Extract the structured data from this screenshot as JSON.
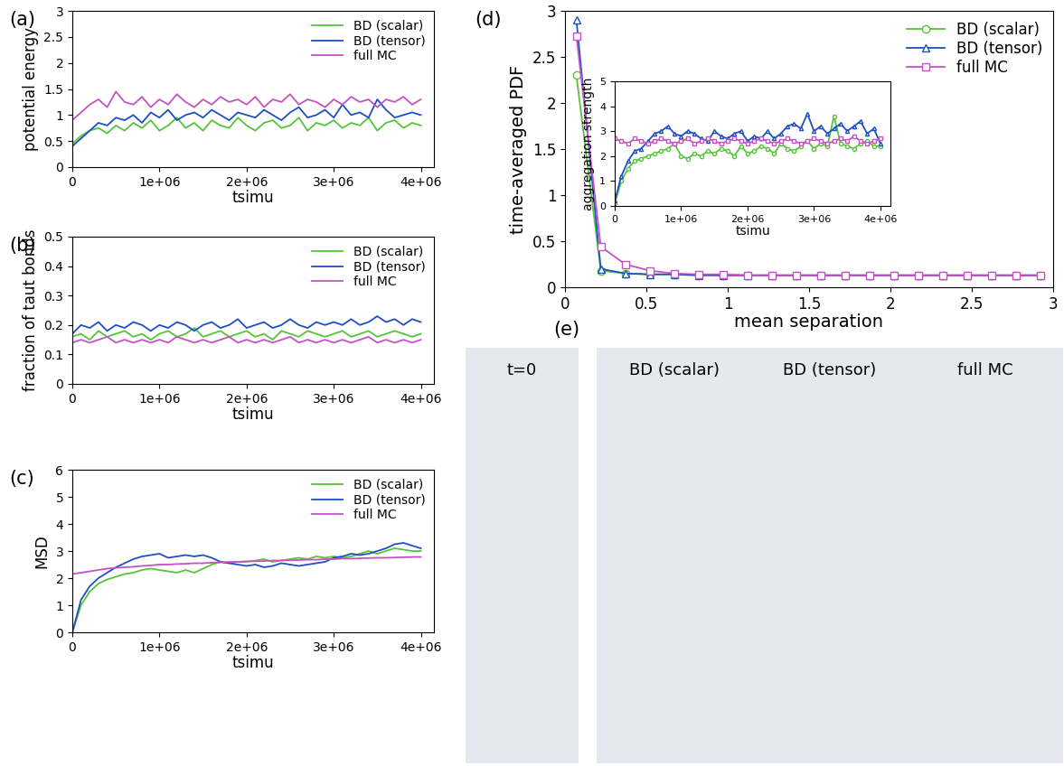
{
  "chart_data": [
    {
      "type": "line",
      "panel": "(a)",
      "xlabel": "tsimu",
      "ylabel": "potential energy",
      "xlim": [
        0,
        4150000
      ],
      "ylim": [
        0,
        3
      ],
      "xticks": [
        0,
        {
          "value": 1000000,
          "label": "1e+06"
        },
        {
          "value": 2000000,
          "label": "2e+06"
        },
        {
          "value": 3000000,
          "label": "3e+06"
        },
        {
          "value": 4000000,
          "label": "4e+06"
        }
      ],
      "yticks": [
        0,
        0.5,
        1,
        1.5,
        2,
        2.5,
        3
      ],
      "legend": "upper right",
      "x": [
        0,
        100000,
        200000,
        300000,
        400000,
        500000,
        600000,
        700000,
        800000,
        900000,
        1000000,
        1100000,
        1200000,
        1300000,
        1400000,
        1500000,
        1600000,
        1700000,
        1800000,
        1900000,
        2000000,
        2100000,
        2200000,
        2300000,
        2400000,
        2500000,
        2600000,
        2700000,
        2800000,
        2900000,
        3000000,
        3100000,
        3200000,
        3300000,
        3400000,
        3500000,
        3600000,
        3700000,
        3800000,
        3900000,
        4000000
      ],
      "series": [
        {
          "name": "BD (scalar)",
          "color": "#55c43a",
          "values": [
            0.45,
            0.6,
            0.7,
            0.75,
            0.65,
            0.8,
            0.7,
            0.85,
            0.75,
            0.9,
            0.7,
            0.8,
            0.95,
            0.75,
            0.85,
            0.7,
            0.9,
            0.8,
            0.75,
            0.95,
            0.8,
            0.7,
            0.85,
            0.9,
            0.75,
            0.8,
            0.95,
            0.7,
            0.85,
            0.8,
            0.9,
            0.75,
            0.85,
            0.8,
            0.95,
            0.7,
            0.85,
            0.9,
            0.75,
            0.85,
            0.8
          ]
        },
        {
          "name": "BD (tensor)",
          "color": "#1f4fc4",
          "values": [
            0.4,
            0.55,
            0.7,
            0.85,
            0.8,
            0.95,
            0.9,
            1.0,
            0.85,
            1.05,
            0.95,
            1.1,
            0.9,
            1.0,
            1.05,
            0.95,
            1.1,
            1.0,
            0.9,
            1.05,
            1.0,
            0.95,
            1.1,
            1.0,
            0.9,
            1.05,
            1.15,
            0.95,
            1.0,
            1.1,
            0.95,
            1.2,
            1.0,
            1.05,
            0.95,
            1.3,
            1.1,
            0.95,
            1.0,
            1.05,
            1.0
          ]
        },
        {
          "name": "full MC",
          "color": "#c452c4",
          "values": [
            0.9,
            1.05,
            1.2,
            1.3,
            1.15,
            1.45,
            1.25,
            1.2,
            1.35,
            1.15,
            1.3,
            1.2,
            1.4,
            1.25,
            1.15,
            1.3,
            1.2,
            1.35,
            1.25,
            1.3,
            1.2,
            1.35,
            1.15,
            1.3,
            1.25,
            1.4,
            1.2,
            1.3,
            1.25,
            1.15,
            1.3,
            1.2,
            1.35,
            1.25,
            1.3,
            1.15,
            1.3,
            1.25,
            1.35,
            1.2,
            1.3
          ]
        }
      ]
    },
    {
      "type": "line",
      "panel": "(b)",
      "xlabel": "tsimu",
      "ylabel": "fraction of taut bonds",
      "xlim": [
        0,
        4150000
      ],
      "ylim": [
        0,
        0.5
      ],
      "xticks": [
        0,
        {
          "value": 1000000,
          "label": "1e+06"
        },
        {
          "value": 2000000,
          "label": "2e+06"
        },
        {
          "value": 3000000,
          "label": "3e+06"
        },
        {
          "value": 4000000,
          "label": "4e+06"
        }
      ],
      "yticks": [
        0,
        0.1,
        0.2,
        0.3,
        0.4,
        0.5
      ],
      "legend": "upper right",
      "x": [
        0,
        100000,
        200000,
        300000,
        400000,
        500000,
        600000,
        700000,
        800000,
        900000,
        1000000,
        1100000,
        1200000,
        1300000,
        1400000,
        1500000,
        1600000,
        1700000,
        1800000,
        1900000,
        2000000,
        2100000,
        2200000,
        2300000,
        2400000,
        2500000,
        2600000,
        2700000,
        2800000,
        2900000,
        3000000,
        3100000,
        3200000,
        3300000,
        3400000,
        3500000,
        3600000,
        3700000,
        3800000,
        3900000,
        4000000
      ],
      "series": [
        {
          "name": "BD (scalar)",
          "color": "#55c43a",
          "values": [
            0.16,
            0.17,
            0.15,
            0.18,
            0.16,
            0.17,
            0.18,
            0.16,
            0.17,
            0.15,
            0.17,
            0.18,
            0.16,
            0.17,
            0.19,
            0.16,
            0.17,
            0.18,
            0.16,
            0.17,
            0.18,
            0.16,
            0.17,
            0.15,
            0.18,
            0.17,
            0.16,
            0.18,
            0.17,
            0.16,
            0.17,
            0.18,
            0.16,
            0.17,
            0.18,
            0.16,
            0.17,
            0.18,
            0.17,
            0.16,
            0.17
          ]
        },
        {
          "name": "BD (tensor)",
          "color": "#1f4fc4",
          "values": [
            0.17,
            0.2,
            0.19,
            0.21,
            0.18,
            0.2,
            0.19,
            0.21,
            0.2,
            0.18,
            0.2,
            0.19,
            0.21,
            0.2,
            0.18,
            0.2,
            0.21,
            0.19,
            0.2,
            0.22,
            0.19,
            0.2,
            0.21,
            0.19,
            0.2,
            0.22,
            0.2,
            0.19,
            0.21,
            0.2,
            0.21,
            0.2,
            0.22,
            0.2,
            0.21,
            0.23,
            0.21,
            0.22,
            0.2,
            0.22,
            0.21
          ]
        },
        {
          "name": "full MC",
          "color": "#c452c4",
          "values": [
            0.14,
            0.15,
            0.14,
            0.15,
            0.16,
            0.14,
            0.15,
            0.14,
            0.15,
            0.14,
            0.15,
            0.14,
            0.16,
            0.15,
            0.14,
            0.15,
            0.14,
            0.15,
            0.16,
            0.14,
            0.15,
            0.14,
            0.15,
            0.14,
            0.15,
            0.16,
            0.14,
            0.15,
            0.14,
            0.15,
            0.14,
            0.15,
            0.14,
            0.15,
            0.16,
            0.14,
            0.15,
            0.14,
            0.15,
            0.14,
            0.15
          ]
        }
      ]
    },
    {
      "type": "line",
      "panel": "(c)",
      "xlabel": "tsimu",
      "ylabel": "MSD",
      "xlim": [
        0,
        4150000
      ],
      "ylim": [
        0,
        6
      ],
      "xticks": [
        0,
        {
          "value": 1000000,
          "label": "1e+06"
        },
        {
          "value": 2000000,
          "label": "2e+06"
        },
        {
          "value": 3000000,
          "label": "3e+06"
        },
        {
          "value": 4000000,
          "label": "4e+06"
        }
      ],
      "yticks": [
        0,
        1,
        2,
        3,
        4,
        5,
        6
      ],
      "legend": "upper right",
      "x": [
        0,
        100000,
        200000,
        300000,
        400000,
        500000,
        600000,
        700000,
        800000,
        900000,
        1000000,
        1100000,
        1200000,
        1300000,
        1400000,
        1500000,
        1600000,
        1700000,
        1800000,
        1900000,
        2000000,
        2100000,
        2200000,
        2300000,
        2400000,
        2500000,
        2600000,
        2700000,
        2800000,
        2900000,
        3000000,
        3100000,
        3200000,
        3300000,
        3400000,
        3500000,
        3600000,
        3700000,
        3800000,
        3900000,
        4000000
      ],
      "series": [
        {
          "name": "BD (scalar)",
          "color": "#55c43a",
          "values": [
            0,
            1.0,
            1.5,
            1.8,
            1.95,
            2.05,
            2.15,
            2.2,
            2.3,
            2.35,
            2.3,
            2.25,
            2.2,
            2.3,
            2.2,
            2.35,
            2.5,
            2.6,
            2.55,
            2.6,
            2.6,
            2.65,
            2.7,
            2.6,
            2.65,
            2.7,
            2.75,
            2.7,
            2.8,
            2.75,
            2.8,
            2.75,
            2.8,
            2.9,
            3.0,
            2.9,
            3.0,
            3.1,
            3.05,
            3.0,
            3.0
          ]
        },
        {
          "name": "BD (tensor)",
          "color": "#1f4fc4",
          "values": [
            0,
            1.2,
            1.7,
            2.0,
            2.2,
            2.4,
            2.55,
            2.7,
            2.8,
            2.85,
            2.9,
            2.75,
            2.8,
            2.85,
            2.8,
            2.85,
            2.75,
            2.6,
            2.55,
            2.5,
            2.45,
            2.5,
            2.4,
            2.45,
            2.55,
            2.5,
            2.45,
            2.5,
            2.55,
            2.6,
            2.75,
            2.8,
            2.9,
            2.85,
            2.9,
            3.0,
            3.1,
            3.25,
            3.3,
            3.2,
            3.1
          ]
        },
        {
          "name": "full MC",
          "color": "#c452c4",
          "values": [
            2.15,
            2.2,
            2.25,
            2.3,
            2.35,
            2.38,
            2.4,
            2.42,
            2.45,
            2.47,
            2.5,
            2.5,
            2.52,
            2.53,
            2.55,
            2.55,
            2.57,
            2.58,
            2.6,
            2.6,
            2.62,
            2.62,
            2.63,
            2.65,
            2.65,
            2.66,
            2.67,
            2.68,
            2.68,
            2.7,
            2.7,
            2.72,
            2.72,
            2.73,
            2.74,
            2.75,
            2.75,
            2.76,
            2.77,
            2.78,
            2.78
          ]
        }
      ]
    },
    {
      "type": "line",
      "panel": "(d)",
      "xlabel": "mean separation",
      "ylabel": "time-averaged PDF",
      "xlim": [
        0,
        3
      ],
      "ylim": [
        0,
        3
      ],
      "xticks": [
        0,
        0.5,
        1,
        1.5,
        2,
        2.5,
        3
      ],
      "yticks": [
        0,
        0.5,
        1,
        1.5,
        2,
        2.5,
        3
      ],
      "legend": "upper right",
      "x": [
        0.07,
        0.22,
        0.37,
        0.52,
        0.67,
        0.82,
        0.97,
        1.12,
        1.27,
        1.42,
        1.57,
        1.72,
        1.87,
        2.02,
        2.17,
        2.32,
        2.47,
        2.62,
        2.77,
        2.92
      ],
      "series": [
        {
          "name": "BD (scalar)",
          "color": "#55c43a",
          "marker": "circle",
          "values": [
            2.3,
            0.18,
            0.15,
            0.14,
            0.14,
            0.13,
            0.13,
            0.13,
            0.13,
            0.13,
            0.13,
            0.13,
            0.13,
            0.13,
            0.13,
            0.13,
            0.13,
            0.13,
            0.13,
            0.13
          ]
        },
        {
          "name": "BD (tensor)",
          "color": "#1f4fc4",
          "marker": "triangle",
          "values": [
            2.9,
            0.2,
            0.15,
            0.14,
            0.14,
            0.13,
            0.13,
            0.13,
            0.13,
            0.13,
            0.13,
            0.13,
            0.13,
            0.13,
            0.13,
            0.13,
            0.13,
            0.13,
            0.13,
            0.13
          ]
        },
        {
          "name": "full MC",
          "color": "#c452c4",
          "marker": "square",
          "values": [
            2.73,
            0.44,
            0.25,
            0.18,
            0.15,
            0.14,
            0.14,
            0.13,
            0.13,
            0.13,
            0.13,
            0.13,
            0.13,
            0.13,
            0.13,
            0.13,
            0.13,
            0.13,
            0.13,
            0.13
          ]
        }
      ],
      "inset": {
        "type": "line",
        "xlabel": "tsimu",
        "ylabel": "aggregation strength",
        "xlim": [
          0,
          4150000
        ],
        "ylim": [
          0,
          5
        ],
        "xticks": [
          0,
          {
            "value": 1000000,
            "label": "1e+06"
          },
          {
            "value": 2000000,
            "label": "2e+06"
          },
          {
            "value": 3000000,
            "label": "3e+06"
          },
          {
            "value": 4000000,
            "label": "4e+06"
          }
        ],
        "yticks": [
          0,
          1,
          2,
          3,
          4,
          5
        ],
        "x": [
          0,
          100000,
          200000,
          300000,
          400000,
          500000,
          600000,
          700000,
          800000,
          900000,
          1000000,
          1100000,
          1200000,
          1300000,
          1400000,
          1500000,
          1600000,
          1700000,
          1800000,
          1900000,
          2000000,
          2100000,
          2200000,
          2300000,
          2400000,
          2500000,
          2600000,
          2700000,
          2800000,
          2900000,
          3000000,
          3100000,
          3200000,
          3300000,
          3400000,
          3500000,
          3600000,
          3700000,
          3800000,
          3900000,
          4000000
        ],
        "series": [
          {
            "name": "BD (scalar)",
            "color": "#55c43a",
            "marker": "circle",
            "values": [
              0.1,
              1.0,
              1.5,
              1.8,
              1.9,
              2.0,
              2.1,
              2.2,
              2.3,
              2.5,
              2.0,
              1.9,
              2.1,
              2.0,
              2.2,
              2.1,
              2.3,
              2.2,
              2.0,
              2.4,
              2.1,
              2.2,
              2.4,
              2.3,
              2.1,
              2.5,
              2.3,
              2.2,
              2.4,
              2.6,
              2.3,
              2.5,
              2.4,
              3.6,
              2.5,
              2.4,
              2.3,
              2.5,
              2.6,
              2.4,
              2.4
            ]
          },
          {
            "name": "BD (tensor)",
            "color": "#1f4fc4",
            "marker": "triangle",
            "values": [
              0.2,
              1.2,
              1.8,
              2.2,
              2.3,
              2.6,
              2.9,
              3.0,
              3.2,
              2.9,
              2.8,
              3.0,
              2.9,
              2.7,
              2.6,
              3.0,
              2.8,
              2.7,
              2.9,
              3.0,
              2.6,
              2.8,
              2.7,
              3.0,
              2.7,
              2.9,
              3.2,
              3.3,
              3.1,
              3.7,
              3.0,
              3.2,
              2.9,
              3.1,
              3.3,
              3.0,
              3.2,
              3.4,
              2.9,
              3.1,
              2.5
            ]
          },
          {
            "name": "full MC",
            "color": "#c452c4",
            "marker": "square",
            "values": [
              2.7,
              2.6,
              2.5,
              2.7,
              2.6,
              2.5,
              2.6,
              2.7,
              2.6,
              2.5,
              2.6,
              2.7,
              2.5,
              2.6,
              2.7,
              2.6,
              2.5,
              2.6,
              2.7,
              2.6,
              2.5,
              2.6,
              2.7,
              2.6,
              2.5,
              2.6,
              2.7,
              2.6,
              2.5,
              2.6,
              2.7,
              2.6,
              2.5,
              2.6,
              2.7,
              2.6,
              2.8,
              2.6,
              2.5,
              2.6,
              2.7
            ]
          }
        ]
      }
    }
  ],
  "image_panel": {
    "panel": "(e)",
    "labels": [
      "t=0",
      "BD (scalar)",
      "BD (tensor)",
      "full MC"
    ]
  }
}
